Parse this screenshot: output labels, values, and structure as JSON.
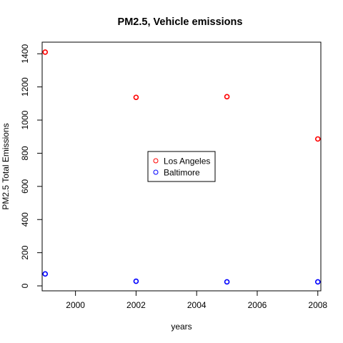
{
  "chart_data": {
    "type": "scatter",
    "title": "PM2.5, Vehicle emissions",
    "xlabel": "years",
    "ylabel": "PM2.5 Total Emissions",
    "xlim": [
      1998.9,
      2008.1
    ],
    "ylim": [
      -30,
      1470
    ],
    "xticks": [
      2000,
      2002,
      2004,
      2006,
      2008
    ],
    "yticks": [
      0,
      200,
      400,
      600,
      800,
      1000,
      1200,
      1400
    ],
    "grid": false,
    "legend_position": "center",
    "series": [
      {
        "name": "Los Angeles",
        "color": "#ff0000",
        "marker": "open-circle",
        "points": [
          {
            "x": 1999,
            "y": 1410
          },
          {
            "x": 2002,
            "y": 1137
          },
          {
            "x": 2005,
            "y": 1141
          },
          {
            "x": 2008,
            "y": 886
          }
        ]
      },
      {
        "name": "Baltimore",
        "color": "#0000ff",
        "marker": "open-circle",
        "points": [
          {
            "x": 1999,
            "y": 72
          },
          {
            "x": 2002,
            "y": 28
          },
          {
            "x": 2005,
            "y": 24
          },
          {
            "x": 2008,
            "y": 24
          }
        ]
      }
    ]
  }
}
